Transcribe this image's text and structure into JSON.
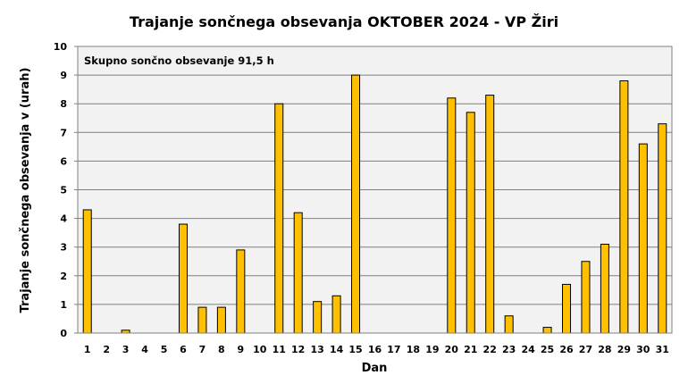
{
  "chart_data": {
    "type": "bar",
    "title": "Trajanje  sončnega  obsevanja  OKTOBER  2024 - VP Žiri",
    "xlabel": "Dan",
    "ylabel": "Trajanje  sončnega obsevanja  v (urah)",
    "annotation": "Skupno sončno obsevanje 91,5  h",
    "ylim": [
      0,
      10
    ],
    "yticks": [
      0,
      1,
      2,
      3,
      4,
      5,
      6,
      7,
      8,
      9,
      10
    ],
    "grid": true,
    "categories": [
      "1",
      "2",
      "3",
      "4",
      "5",
      "6",
      "7",
      "8",
      "9",
      "10",
      "11",
      "12",
      "13",
      "14",
      "15",
      "16",
      "17",
      "18",
      "19",
      "20",
      "21",
      "22",
      "23",
      "24",
      "25",
      "26",
      "27",
      "28",
      "29",
      "30",
      "31"
    ],
    "values": [
      4.3,
      0,
      0.1,
      0,
      0,
      3.8,
      0.9,
      0.9,
      2.9,
      0,
      8.0,
      4.2,
      1.1,
      1.3,
      9.0,
      0,
      0,
      0,
      0,
      8.2,
      7.7,
      8.3,
      0.6,
      0,
      0.2,
      1.7,
      2.5,
      3.1,
      8.8,
      6.6,
      7.3
    ],
    "bar_color": "#FFC000",
    "bar_stroke": "#000000",
    "plot_background": "#F2F2F2"
  }
}
